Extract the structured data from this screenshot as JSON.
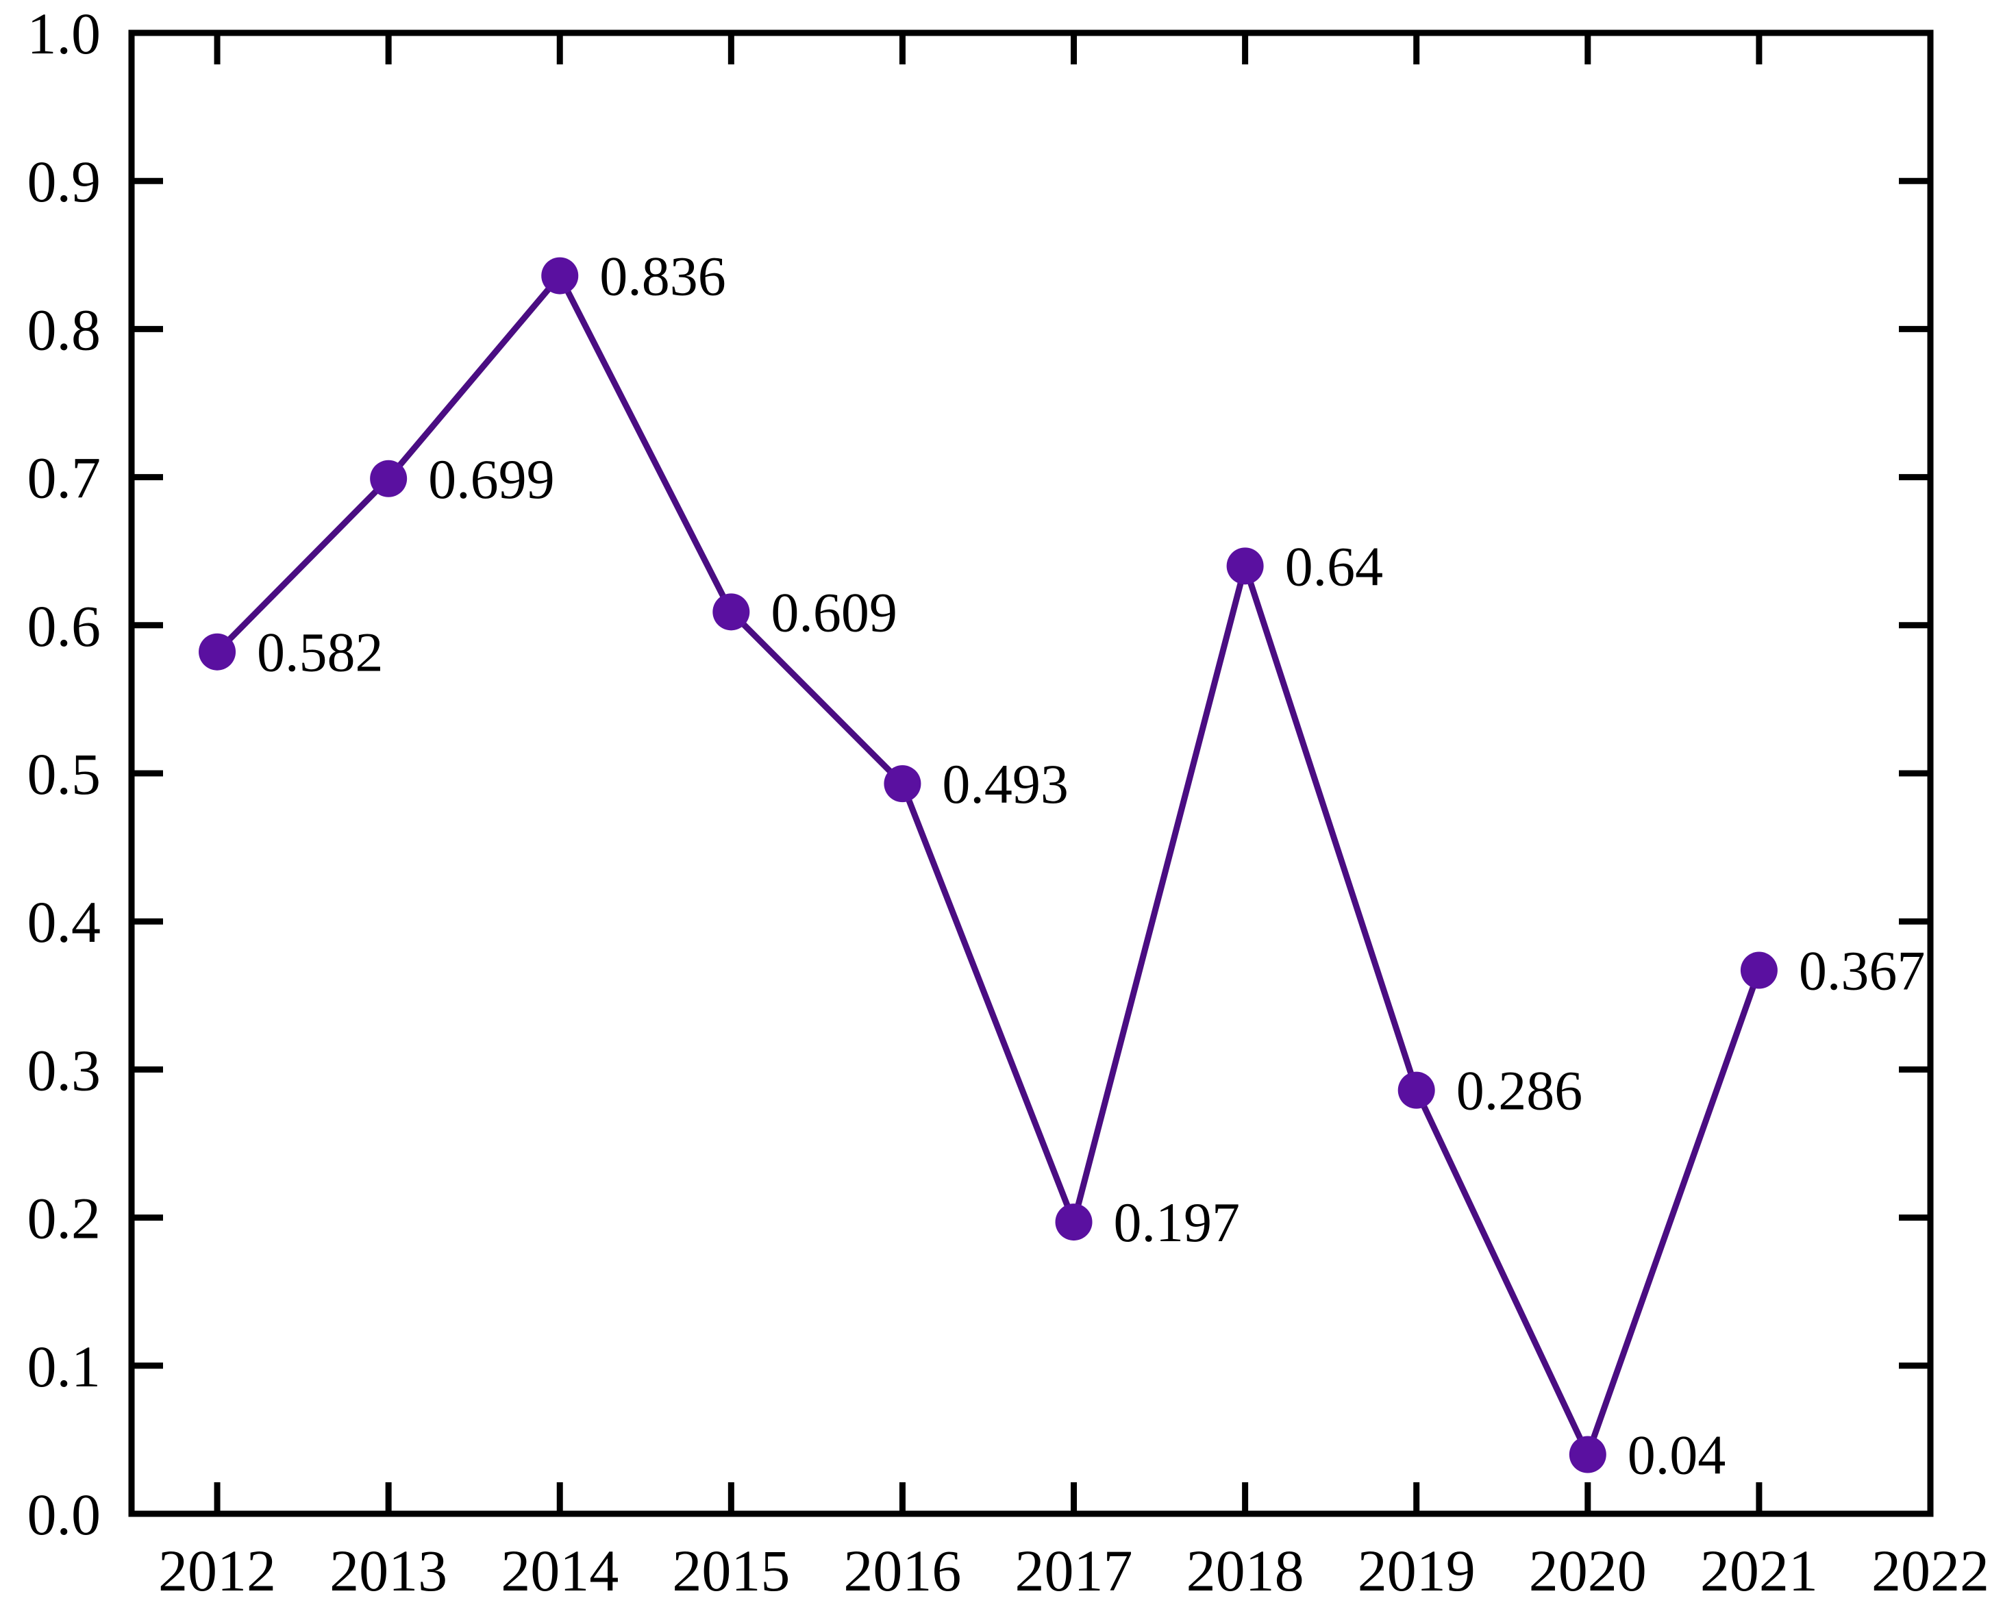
{
  "chart_data": {
    "type": "line",
    "title": "",
    "xlabel": "",
    "ylabel": "",
    "x": [
      2012,
      2013,
      2014,
      2015,
      2016,
      2017,
      2018,
      2019,
      2020,
      2021
    ],
    "values": [
      0.582,
      0.699,
      0.836,
      0.609,
      0.493,
      0.197,
      0.64,
      0.286,
      0.04,
      0.367
    ],
    "point_labels": [
      "0.582",
      "0.699",
      "0.836",
      "0.609",
      "0.493",
      "0.197",
      "0.64",
      "0.286",
      "0.04",
      "0.367"
    ],
    "xlim": [
      2011.5,
      2022
    ],
    "ylim": [
      0.0,
      1.0
    ],
    "xticks": {
      "values": [
        2012,
        2013,
        2014,
        2015,
        2016,
        2017,
        2018,
        2019,
        2020,
        2021,
        2022
      ],
      "labels": [
        "2012",
        "2013",
        "2014",
        "2015",
        "2016",
        "2017",
        "2018",
        "2019",
        "2020",
        "2021",
        "2022"
      ]
    },
    "yticks": {
      "values": [
        0.0,
        0.1,
        0.2,
        0.3,
        0.4,
        0.5,
        0.6,
        0.7,
        0.8,
        0.9,
        1.0
      ],
      "labels": [
        "0.0",
        "0.1",
        "0.2",
        "0.3",
        "0.4",
        "0.5",
        "0.6",
        "0.7",
        "0.8",
        "0.9",
        "1.0"
      ]
    },
    "grid": false,
    "legend": "none",
    "style": {
      "line_color": "#4a0d82",
      "marker_color": "#5a10a0",
      "marker_shape": "circle",
      "axis_color": "#000000",
      "text_color": "#000000",
      "background": "#ffffff",
      "tick_direction": "in",
      "box": true
    }
  }
}
